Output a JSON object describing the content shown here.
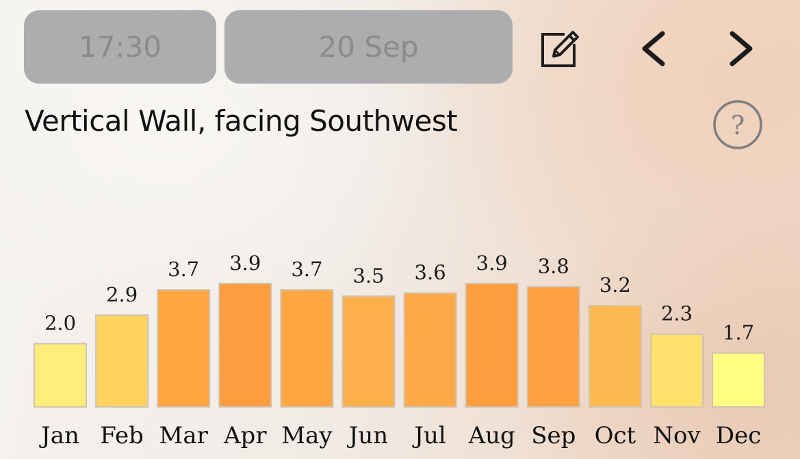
{
  "header": {
    "time": "17:30",
    "date": "20 Sep"
  },
  "icons": {
    "edit": "edit-icon",
    "prev": "chevron-left-icon",
    "next": "chevron-right-icon",
    "help": "help-icon"
  },
  "colors": {
    "pill_bg": "#adacae",
    "pill_text": "#8b8a8d",
    "icon": "#1c1c1c",
    "help_icon": "#7e7e7e"
  },
  "chart_data": {
    "type": "bar",
    "title": "Vertical Wall, facing Southwest",
    "categories": [
      "Jan",
      "Feb",
      "Mar",
      "Apr",
      "May",
      "Jun",
      "Jul",
      "Aug",
      "Sep",
      "Oct",
      "Nov",
      "Dec"
    ],
    "values": [
      2.0,
      2.9,
      3.7,
      3.9,
      3.7,
      3.5,
      3.6,
      3.9,
      3.8,
      3.2,
      2.3,
      1.7
    ],
    "value_labels": [
      "2.0",
      "2.9",
      "3.7",
      "3.9",
      "3.7",
      "3.5",
      "3.6",
      "3.9",
      "3.8",
      "3.2",
      "2.3",
      "1.7"
    ],
    "colors": [
      "#ffee79",
      "#ffd35f",
      "#fea642",
      "#fe9d3e",
      "#fea642",
      "#feb04b",
      "#fea947",
      "#fe9d3e",
      "#fea143",
      "#feba50",
      "#ffe16c",
      "#ffff82"
    ],
    "bar_stroke": "#cfc4b4",
    "xlabel": "",
    "ylabel": "",
    "grid": false,
    "legend": "none"
  }
}
